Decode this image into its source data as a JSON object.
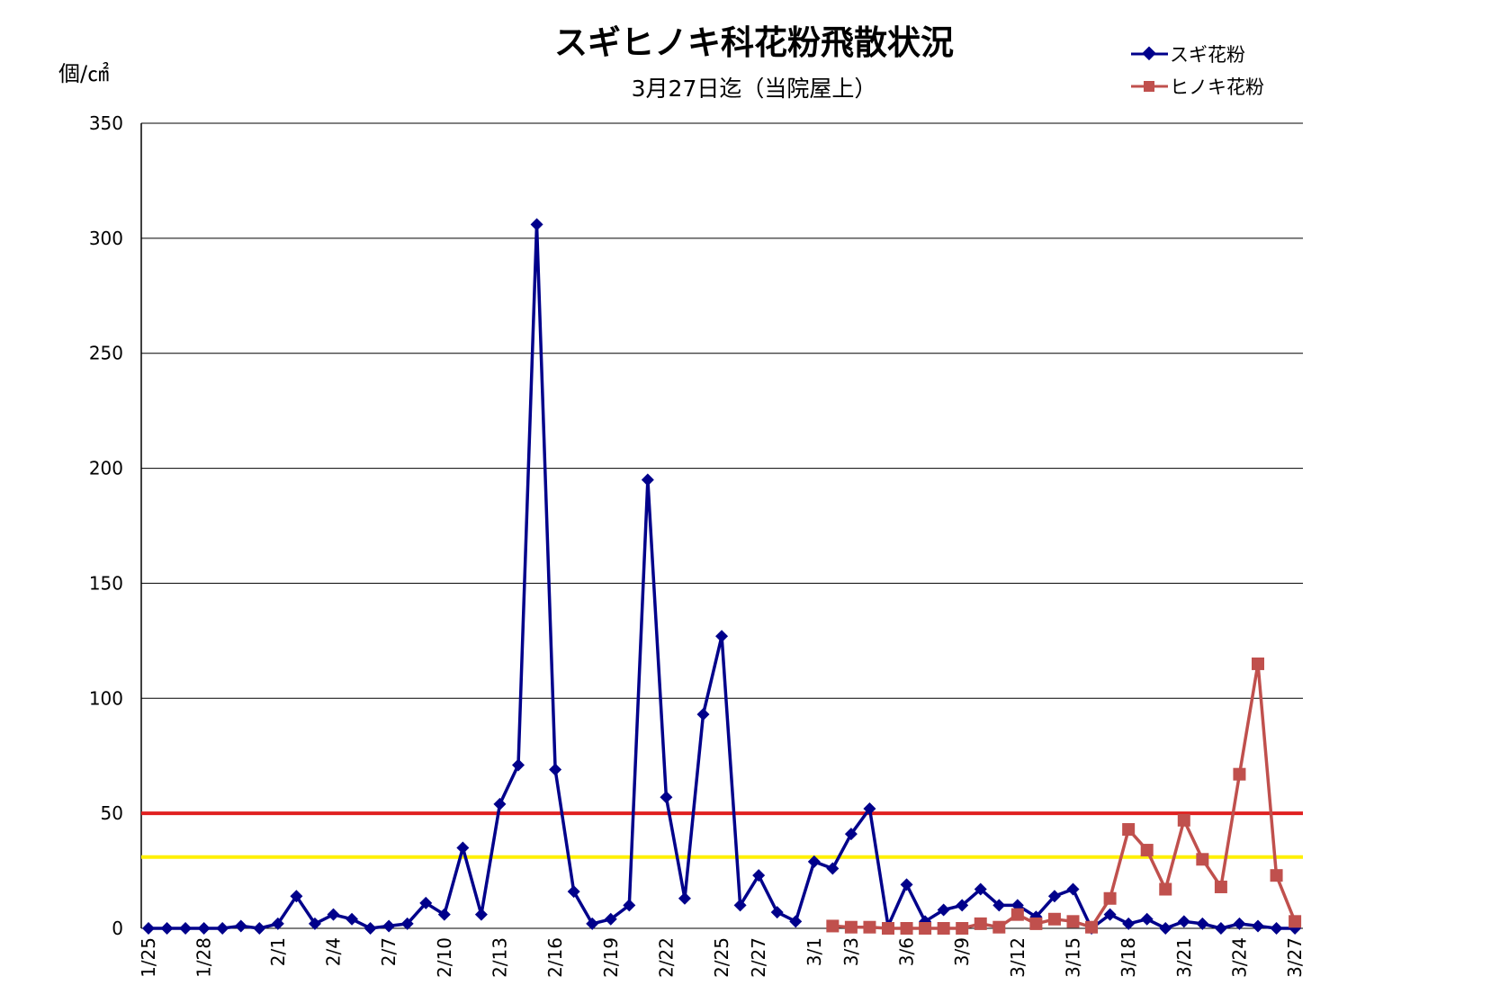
{
  "chart_data": {
    "type": "line",
    "title": "スギヒノキ科花粉飛散状況",
    "subtitle": "3月27日迄（当院屋上）",
    "ylabel": "個/㎠",
    "ylim": [
      0,
      350
    ],
    "yticks": [
      0,
      50,
      100,
      150,
      200,
      250,
      300,
      350
    ],
    "grid": true,
    "legend_position": "top-right",
    "x": [
      "1/25",
      "1/26",
      "1/27",
      "1/28",
      "1/29",
      "1/30",
      "1/31",
      "2/1",
      "2/2",
      "2/3",
      "2/4",
      "2/5",
      "2/6",
      "2/7",
      "2/8",
      "2/9",
      "2/10",
      "2/11",
      "2/12",
      "2/13",
      "2/14",
      "2/15",
      "2/16",
      "2/17",
      "2/18",
      "2/19",
      "2/20",
      "2/21",
      "2/22",
      "2/23",
      "2/24",
      "2/25",
      "2/26",
      "2/27",
      "2/28",
      "2/29",
      "3/1",
      "3/2",
      "3/3",
      "3/4",
      "3/5",
      "3/6",
      "3/7",
      "3/8",
      "3/9",
      "3/10",
      "3/11",
      "3/12",
      "3/13",
      "3/14",
      "3/15",
      "3/16",
      "3/17",
      "3/18",
      "3/19",
      "3/20",
      "3/21",
      "3/22",
      "3/23",
      "3/24",
      "3/25",
      "3/26",
      "3/27"
    ],
    "x_tick_labels": [
      "1/25",
      "1/28",
      "2/1",
      "2/4",
      "2/7",
      "2/10",
      "2/13",
      "2/16",
      "2/19",
      "2/22",
      "2/25",
      "2/27",
      "3/1",
      "3/3",
      "3/6",
      "3/9",
      "3/12",
      "3/15",
      "3/18",
      "3/21",
      "3/24",
      "3/27"
    ],
    "series": [
      {
        "name": "スギ花粉",
        "color": "#00008B",
        "marker": "diamond",
        "values": [
          0,
          0,
          0,
          0,
          0,
          1,
          0,
          2,
          14,
          2,
          6,
          4,
          0,
          1,
          2,
          11,
          6,
          35,
          6,
          54,
          71,
          306,
          69,
          16,
          2,
          4,
          10,
          195,
          57,
          13,
          93,
          127,
          10,
          23,
          7,
          3,
          29,
          26,
          41,
          52,
          1,
          19,
          3,
          8,
          10,
          17,
          10,
          10,
          5,
          14,
          17,
          0,
          6,
          2,
          4,
          0,
          3,
          2,
          0,
          2,
          1,
          0,
          0
        ]
      },
      {
        "name": "ヒノキ花粉",
        "color": "#C0504D",
        "marker": "square",
        "values": [
          null,
          null,
          null,
          null,
          null,
          null,
          null,
          null,
          null,
          null,
          null,
          null,
          null,
          null,
          null,
          null,
          null,
          null,
          null,
          null,
          null,
          null,
          null,
          null,
          null,
          null,
          null,
          null,
          null,
          null,
          null,
          null,
          null,
          null,
          null,
          null,
          null,
          1,
          0.5,
          0.5,
          0,
          0,
          0,
          0,
          0,
          2,
          0.5,
          6,
          2,
          4,
          3,
          0.5,
          13,
          43,
          34,
          17,
          47,
          30,
          18,
          67,
          115,
          23,
          3
        ]
      }
    ],
    "reference_lines": [
      {
        "value": 50,
        "color": "#E02020"
      },
      {
        "value": 31,
        "color": "#FFF000"
      }
    ]
  }
}
